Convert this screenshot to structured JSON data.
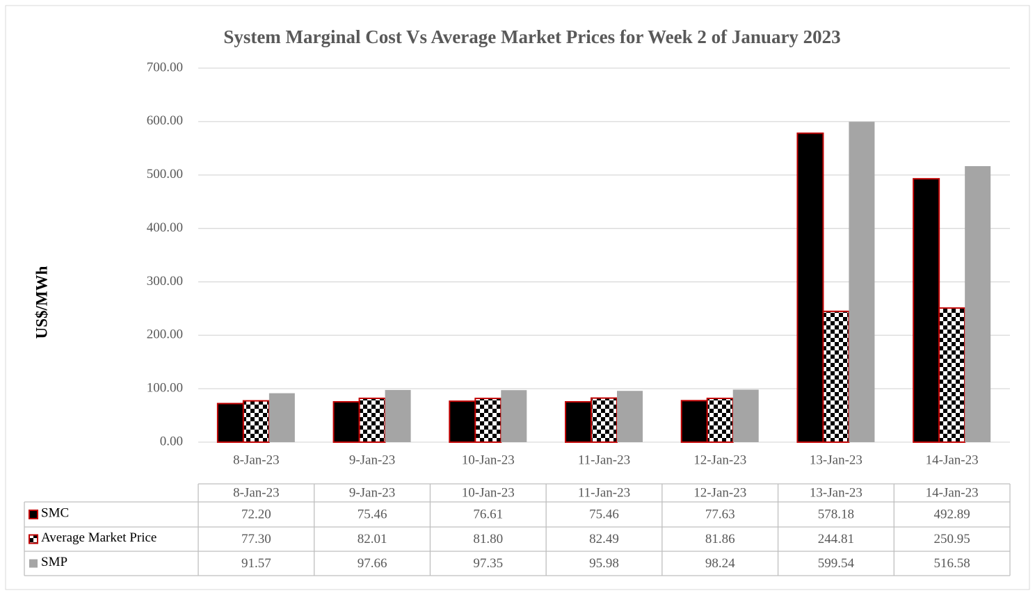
{
  "chart_data": {
    "type": "bar",
    "title": "System Marginal Cost Vs Average Market Prices for Week 2 of January 2023",
    "ylabel": "US$/MWh",
    "categories": [
      "8-Jan-23",
      "9-Jan-23",
      "10-Jan-23",
      "11-Jan-23",
      "12-Jan-23",
      "13-Jan-23",
      "14-Jan-23"
    ],
    "series": [
      {
        "name": "SMC",
        "color": "#000000",
        "pattern": "solid",
        "values": [
          72.2,
          75.46,
          76.61,
          75.46,
          77.63,
          578.18,
          492.89
        ],
        "value_labels": [
          "72.20",
          "75.46",
          "76.61",
          "75.46",
          "77.63",
          "578.18",
          "492.89"
        ]
      },
      {
        "name": "Average Market Price",
        "color": "#000000",
        "pattern": "checker",
        "values": [
          77.3,
          82.01,
          81.8,
          82.49,
          81.86,
          244.81,
          250.95
        ],
        "value_labels": [
          "77.30",
          "82.01",
          "81.80",
          "82.49",
          "81.86",
          "244.81",
          "250.95"
        ]
      },
      {
        "name": "SMP",
        "color": "#a5a5a5",
        "pattern": "solid",
        "values": [
          91.57,
          97.66,
          97.35,
          95.98,
          98.24,
          599.54,
          516.58
        ],
        "value_labels": [
          "91.57",
          "97.66",
          "97.35",
          "95.98",
          "98.24",
          "599.54",
          "516.58"
        ]
      }
    ],
    "ylim": [
      0,
      700
    ],
    "yticks": [
      {
        "value": 0,
        "label": "0.00"
      },
      {
        "value": 100,
        "label": "100.00"
      },
      {
        "value": 200,
        "label": "200.00"
      },
      {
        "value": 300,
        "label": "300.00"
      },
      {
        "value": 400,
        "label": "400.00"
      },
      {
        "value": 500,
        "label": "500.00"
      },
      {
        "value": 600,
        "label": "600.00"
      },
      {
        "value": 700,
        "label": "700.00"
      }
    ],
    "grid": true,
    "data_table": true
  }
}
